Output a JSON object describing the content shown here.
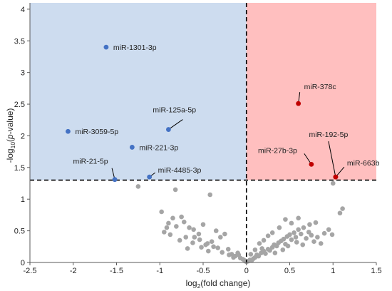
{
  "chart_data": {
    "type": "scatter",
    "title": "",
    "xlabel_main": "log",
    "xlabel_sub": "2",
    "xlabel_rest": "(fold change)",
    "ylabel_main": "-log",
    "ylabel_sub": "10",
    "ylabel_paren_open": "(",
    "ylabel_italic": "p",
    "ylabel_rest": "-value)",
    "xlim": [
      -2.5,
      1.5
    ],
    "ylim": [
      0,
      4.1
    ],
    "x_ticks": [
      -2.5,
      -2,
      -1.5,
      -1,
      -0.5,
      0,
      0.5,
      1,
      1.5
    ],
    "x_tick_labels": [
      "-2.5",
      "-2",
      "-1.5",
      "-1",
      "-0.5",
      "0",
      "0.5",
      "1",
      "1.5"
    ],
    "y_ticks": [
      0,
      0.5,
      1,
      1.5,
      2,
      2.5,
      3,
      3.5,
      4
    ],
    "y_tick_labels": [
      "0",
      "0.5",
      "1",
      "1.5",
      "2",
      "2.5",
      "3",
      "3.5",
      "4"
    ],
    "grid": false,
    "threshold_y": 1.3,
    "threshold_x": 0,
    "colors": {
      "down": "#4472c4",
      "up": "#c00000",
      "ns": "#a5a5a5",
      "down_region": "#cddcef",
      "up_region": "#ffbfbf"
    },
    "labeled_points": [
      {
        "label": "miR-1301-3p",
        "x": -1.62,
        "y": 3.4,
        "group": "down"
      },
      {
        "label": "miR-125a-5p",
        "x": -0.9,
        "y": 2.1,
        "group": "down"
      },
      {
        "label": "miR-3059-5p",
        "x": -2.06,
        "y": 2.07,
        "group": "down"
      },
      {
        "label": "miR-221-3p",
        "x": -1.32,
        "y": 1.82,
        "group": "down"
      },
      {
        "label": "miR-21-5p",
        "x": -1.52,
        "y": 1.31,
        "group": "down"
      },
      {
        "label": "miR-4485-3p",
        "x": -1.12,
        "y": 1.35,
        "group": "down"
      },
      {
        "label": "miR-378c",
        "x": 0.6,
        "y": 2.51,
        "group": "up"
      },
      {
        "label": "miR-27b-3p",
        "x": 0.75,
        "y": 1.55,
        "group": "up"
      },
      {
        "label": "miR-192-5p",
        "x": 1.03,
        "y": 1.35,
        "group": "up"
      },
      {
        "label": "miR-663b",
        "x": 1.03,
        "y": 1.35,
        "group": "up"
      }
    ],
    "ns_points": [
      [
        -1.25,
        1.2
      ],
      [
        -0.82,
        1.15
      ],
      [
        -0.42,
        1.07
      ],
      [
        1.0,
        1.25
      ],
      [
        1.08,
        0.78
      ],
      [
        1.11,
        0.85
      ],
      [
        -0.98,
        0.8
      ],
      [
        -0.75,
        0.72
      ],
      [
        -0.72,
        0.64
      ],
      [
        -0.81,
        0.57
      ],
      [
        -0.66,
        0.55
      ],
      [
        -0.61,
        0.52
      ],
      [
        -0.95,
        0.48
      ],
      [
        -0.88,
        0.44
      ],
      [
        -0.7,
        0.4
      ],
      [
        -0.77,
        0.35
      ],
      [
        -0.62,
        0.31
      ],
      [
        -0.54,
        0.36
      ],
      [
        -0.47,
        0.28
      ],
      [
        -0.4,
        0.33
      ],
      [
        -0.33,
        0.23
      ],
      [
        -0.44,
        0.18
      ],
      [
        -0.28,
        0.16
      ],
      [
        -0.21,
        0.21
      ],
      [
        -0.17,
        0.13
      ],
      [
        -0.13,
        0.1
      ],
      [
        -0.1,
        0.15
      ],
      [
        -0.07,
        0.07
      ],
      [
        -0.04,
        0.05
      ],
      [
        -0.02,
        0.03
      ],
      [
        -0.01,
        0.02
      ],
      [
        0.0,
        0.01
      ],
      [
        0.02,
        0.02
      ],
      [
        0.04,
        0.04
      ],
      [
        0.06,
        0.03
      ],
      [
        0.08,
        0.06
      ],
      [
        0.1,
        0.08
      ],
      [
        0.12,
        0.12
      ],
      [
        0.14,
        0.1
      ],
      [
        0.17,
        0.15
      ],
      [
        0.2,
        0.18
      ],
      [
        0.22,
        0.14
      ],
      [
        0.25,
        0.21
      ],
      [
        0.27,
        0.19
      ],
      [
        0.3,
        0.24
      ],
      [
        0.32,
        0.28
      ],
      [
        0.35,
        0.26
      ],
      [
        0.37,
        0.31
      ],
      [
        0.4,
        0.34
      ],
      [
        0.43,
        0.37
      ],
      [
        0.45,
        0.29
      ],
      [
        0.47,
        0.41
      ],
      [
        0.5,
        0.44
      ],
      [
        0.52,
        0.36
      ],
      [
        0.55,
        0.47
      ],
      [
        0.57,
        0.4
      ],
      [
        0.6,
        0.52
      ],
      [
        0.63,
        0.45
      ],
      [
        0.66,
        0.55
      ],
      [
        0.69,
        0.38
      ],
      [
        0.72,
        0.48
      ],
      [
        0.75,
        0.43
      ],
      [
        0.78,
        0.33
      ],
      [
        0.82,
        0.4
      ],
      [
        0.86,
        0.3
      ],
      [
        0.9,
        0.46
      ],
      [
        0.95,
        0.52
      ],
      [
        0.99,
        0.44
      ],
      [
        0.45,
        0.68
      ],
      [
        0.52,
        0.62
      ],
      [
        0.6,
        0.7
      ],
      [
        0.73,
        0.6
      ],
      [
        0.8,
        0.63
      ],
      [
        0.38,
        0.55
      ],
      [
        0.3,
        0.47
      ],
      [
        0.25,
        0.42
      ],
      [
        0.2,
        0.35
      ],
      [
        0.15,
        0.3
      ],
      [
        -0.25,
        0.45
      ],
      [
        -0.3,
        0.4
      ],
      [
        -0.35,
        0.5
      ],
      [
        -0.5,
        0.6
      ],
      [
        -0.55,
        0.45
      ],
      [
        -0.6,
        0.4
      ],
      [
        -0.9,
        0.62
      ],
      [
        -0.85,
        0.7
      ],
      [
        -0.92,
        0.55
      ],
      [
        -0.2,
        0.12
      ],
      [
        -0.15,
        0.08
      ],
      [
        -0.09,
        0.12
      ],
      [
        0.18,
        0.22
      ],
      [
        0.33,
        0.15
      ],
      [
        0.42,
        0.2
      ],
      [
        0.48,
        0.26
      ],
      [
        0.58,
        0.32
      ],
      [
        0.65,
        0.28
      ],
      [
        -0.38,
        0.25
      ],
      [
        -0.45,
        0.3
      ],
      [
        -0.52,
        0.24
      ],
      [
        -0.68,
        0.22
      ],
      [
        0.05,
        0.13
      ],
      [
        0.1,
        0.2
      ]
    ]
  }
}
